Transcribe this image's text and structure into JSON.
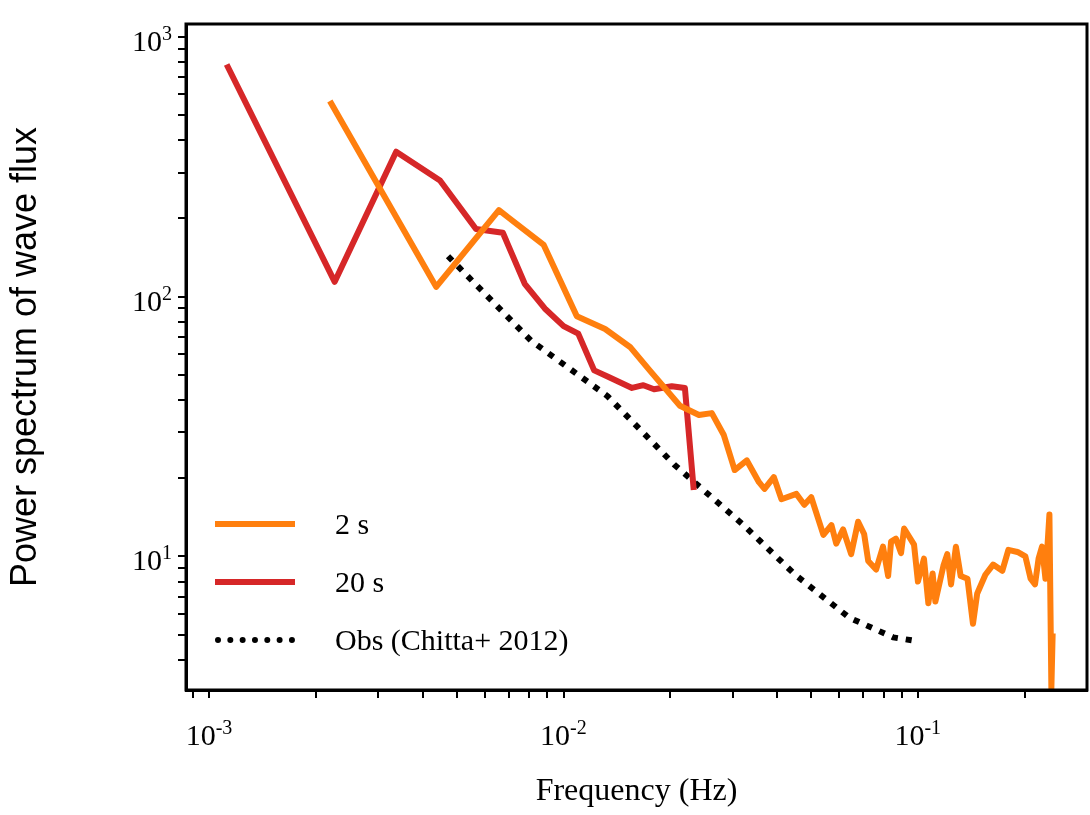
{
  "chart_data": {
    "type": "line",
    "xlabel": "Frequency (Hz)",
    "ylabel": "Power spectrum of wave flux",
    "log": "xy",
    "legend": "bottom left",
    "marker": "none",
    "xlim": [
      0.00086,
      0.3
    ],
    "ylim": [
      3.06,
      1120
    ],
    "xticks": [
      {
        "value": 0.0009,
        "label": null
      },
      {
        "value": 0.001,
        "label": "10$^{-3}$"
      },
      {
        "value": 0.002,
        "label": null
      },
      {
        "value": 0.003,
        "label": null
      },
      {
        "value": 0.004,
        "label": null
      },
      {
        "value": 0.005,
        "label": null
      },
      {
        "value": 0.006,
        "label": null
      },
      {
        "value": 0.007,
        "label": null
      },
      {
        "value": 0.008,
        "label": null
      },
      {
        "value": 0.009,
        "label": null
      },
      {
        "value": 0.01,
        "label": "10$^{-2}$"
      },
      {
        "value": 0.02,
        "label": null
      },
      {
        "value": 0.03,
        "label": null
      },
      {
        "value": 0.04,
        "label": null
      },
      {
        "value": 0.05,
        "label": null
      },
      {
        "value": 0.06,
        "label": null
      },
      {
        "value": 0.07,
        "label": null
      },
      {
        "value": 0.08,
        "label": null
      },
      {
        "value": 0.09,
        "label": null
      },
      {
        "value": 0.1,
        "label": "10$^{-1}$"
      },
      {
        "value": 0.2,
        "label": null
      }
    ],
    "yticks": [
      {
        "value": 4,
        "label": null
      },
      {
        "value": 5,
        "label": null
      },
      {
        "value": 6,
        "label": null
      },
      {
        "value": 7,
        "label": null
      },
      {
        "value": 8,
        "label": null
      },
      {
        "value": 9,
        "label": null
      },
      {
        "value": 10,
        "label": "10$^{1}$"
      },
      {
        "value": 20,
        "label": null
      },
      {
        "value": 30,
        "label": null
      },
      {
        "value": 40,
        "label": null
      },
      {
        "value": 50,
        "label": null
      },
      {
        "value": 60,
        "label": null
      },
      {
        "value": 70,
        "label": null
      },
      {
        "value": 80,
        "label": null
      },
      {
        "value": 90,
        "label": null
      },
      {
        "value": 100,
        "label": "10$^{2}$"
      },
      {
        "value": 200,
        "label": null
      },
      {
        "value": 300,
        "label": null
      },
      {
        "value": 400,
        "label": null
      },
      {
        "value": 500,
        "label": null
      },
      {
        "value": 600,
        "label": null
      },
      {
        "value": 700,
        "label": null
      },
      {
        "value": 800,
        "label": null
      },
      {
        "value": 900,
        "label": null
      },
      {
        "value": 1000,
        "label": "10$^{3}$"
      }
    ],
    "series": [
      {
        "name": "2 s",
        "color": "#ff7f0e",
        "line_style": "solid",
        "x": [
          0.00219,
          0.00437,
          0.00657,
          0.00879,
          0.0109,
          0.0131,
          0.0154,
          0.0175,
          0.0213,
          0.0241,
          0.0262,
          0.0283,
          0.0304,
          0.0329,
          0.0356,
          0.0369,
          0.0392,
          0.0412,
          0.0454,
          0.0478,
          0.05,
          0.0541,
          0.057,
          0.0588,
          0.0615,
          0.0648,
          0.0678,
          0.0705,
          0.0724,
          0.0762,
          0.0797,
          0.0824,
          0.084,
          0.0867,
          0.0896,
          0.0914,
          0.0975,
          0.1,
          0.104,
          0.107,
          0.11,
          0.112,
          0.118,
          0.121,
          0.124,
          0.128,
          0.132,
          0.138,
          0.143,
          0.147,
          0.155,
          0.163,
          0.173,
          0.18,
          0.191,
          0.201,
          0.208,
          0.214,
          0.219,
          0.224,
          0.229,
          0.235,
          0.238,
          0.24
        ],
        "values": [
          566,
          109,
          215,
          158,
          84,
          75,
          64,
          52,
          38,
          35,
          35.6,
          29.4,
          21.5,
          23.4,
          19.3,
          18.2,
          20.2,
          16.6,
          17.4,
          15.8,
          16.9,
          12.1,
          13.2,
          11.2,
          12.7,
          10.2,
          13.6,
          12.2,
          9.6,
          8.9,
          10.9,
          8.4,
          11.4,
          11.7,
          10.3,
          12.8,
          11.1,
          8,
          9.8,
          6.6,
          8.6,
          6.7,
          9.2,
          10.2,
          7.8,
          10.9,
          8.4,
          8.2,
          5.5,
          7.2,
          8.5,
          9.3,
          8.8,
          10.6,
          10.4,
          10,
          8.2,
          7.8,
          9.8,
          10.9,
          8.2,
          14.5,
          3.1,
          5.05
        ]
      },
      {
        "name": "20 s",
        "color": "#d62728",
        "line_style": "solid",
        "x": [
          0.00112,
          0.00226,
          0.00337,
          0.00448,
          0.00566,
          0.00674,
          0.00777,
          0.00885,
          0.01,
          0.011,
          0.0122,
          0.0134,
          0.0156,
          0.0168,
          0.018,
          0.0202,
          0.022,
          0.0233
        ],
        "values": [
          782,
          114,
          361,
          280,
          182,
          176,
          112,
          90,
          77,
          72,
          52,
          49,
          44.5,
          45.6,
          44,
          45.2,
          44.5,
          18
        ]
      },
      {
        "name": "Obs (Chitta+ 2012)",
        "color": "#000000",
        "line_style": "dotted",
        "x": [
          0.00472,
          0.00809,
          0.0133,
          0.0205,
          0.0322,
          0.0449,
          0.064,
          0.0851,
          0.0962
        ],
        "values": [
          143,
          67.7,
          41.4,
          22.6,
          13.2,
          8.53,
          5.81,
          4.88,
          4.75
        ]
      }
    ]
  }
}
